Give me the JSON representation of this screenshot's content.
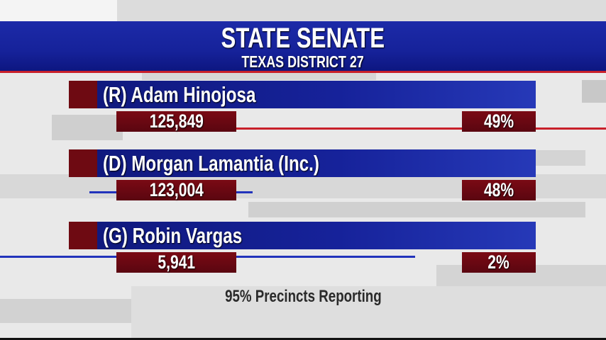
{
  "header": {
    "title": "STATE SENATE",
    "subtitle": "TEXAS DISTRICT 27"
  },
  "colors": {
    "header_blue": "#16229a",
    "party_red": "#6e0a12",
    "accent_red": "#c8202a",
    "accent_blue": "#2233bb"
  },
  "candidates": [
    {
      "name": "(R) Adam Hinojosa",
      "votes": "125,849",
      "percent": "49%"
    },
    {
      "name": "(D) Morgan Lamantia (Inc.)",
      "votes": "123,004",
      "percent": "48%"
    },
    {
      "name": "(G) Robin Vargas",
      "votes": "5,941",
      "percent": "2%"
    }
  ],
  "footer": {
    "reporting": "95% Precincts Reporting"
  }
}
